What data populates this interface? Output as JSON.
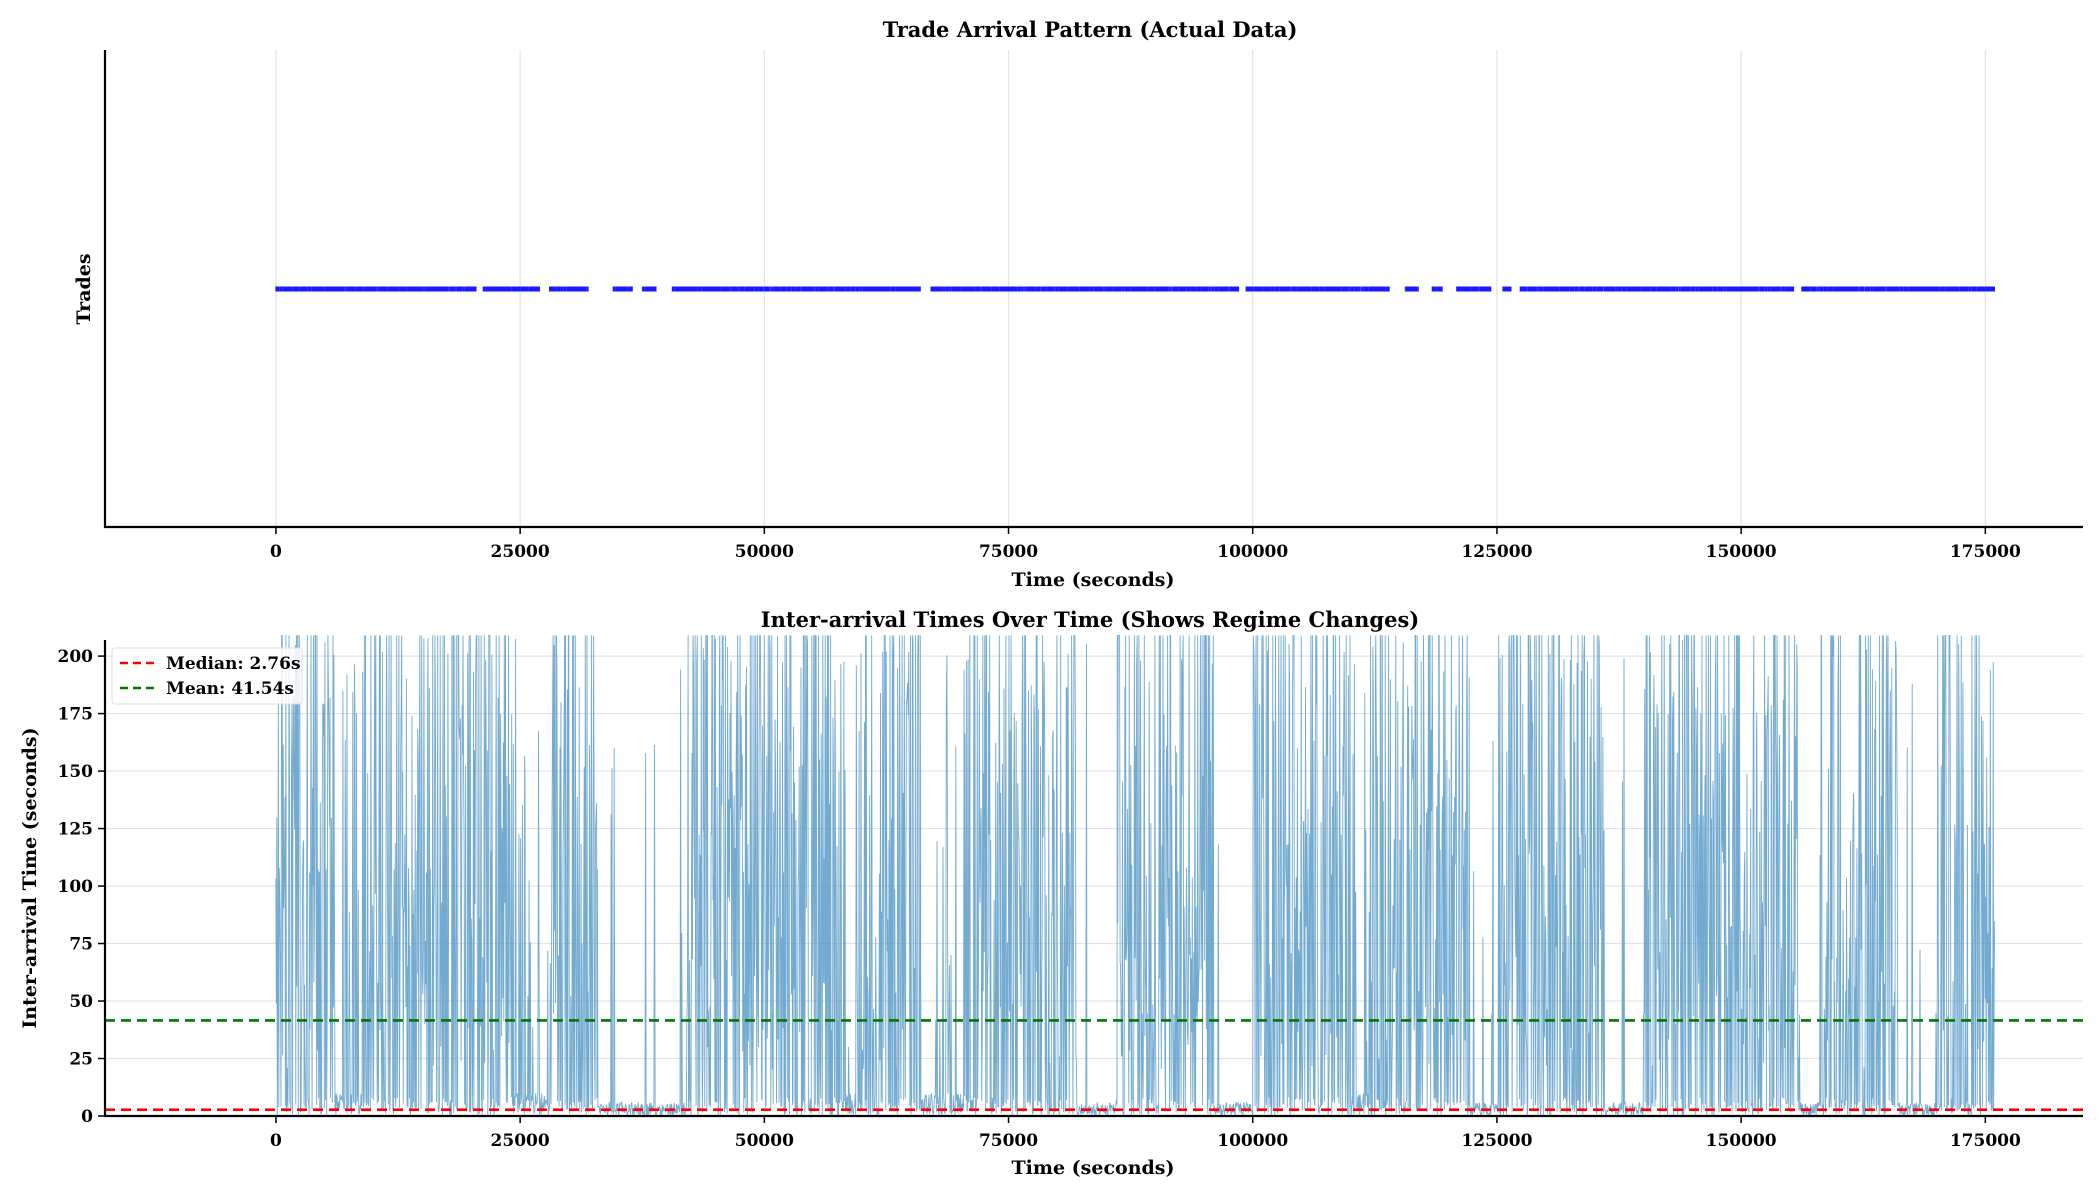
{
  "chart_data": [
    {
      "type": "scatter",
      "title": "Trade Arrival Pattern (Actual Data)",
      "xlabel": "Time (seconds)",
      "ylabel": "Trades",
      "xlim": [
        -17500,
        185000
      ],
      "x_ticks": [
        0,
        25000,
        50000,
        75000,
        100000,
        125000,
        150000,
        175000
      ],
      "y_ticks": [],
      "grid": "vertical",
      "series": [
        {
          "color": "#0000ff",
          "marker": "vertical tick at constant y",
          "x_start": 0,
          "x_end": 176000,
          "gaps": [
            [
              20500,
              21200
            ],
            [
              27000,
              28000
            ],
            [
              32000,
              34500
            ],
            [
              36500,
              37500
            ],
            [
              39000,
              40500
            ],
            [
              66000,
              67000
            ],
            [
              98600,
              99300
            ],
            [
              114000,
              115600
            ],
            [
              117000,
              118300
            ],
            [
              119500,
              120800
            ],
            [
              124400,
              125600
            ],
            [
              126500,
              127300
            ],
            [
              155400,
              156200
            ]
          ]
        }
      ]
    },
    {
      "type": "line",
      "title": "Inter-arrival Times Over Time (Shows Regime Changes)",
      "xlabel": "Time (seconds)",
      "ylabel": "Inter-arrival Time (seconds)",
      "xlim": [
        -17500,
        185000
      ],
      "ylim": [
        0,
        207
      ],
      "x_ticks": [
        0,
        25000,
        50000,
        75000,
        100000,
        125000,
        150000,
        175000
      ],
      "y_ticks": [
        0,
        25,
        50,
        75,
        100,
        125,
        150,
        175,
        200
      ],
      "grid": "horizontal",
      "legend_position": "top-left",
      "series": [
        {
          "color": "#5b9bc8",
          "x_start": 0,
          "x_end": 176000,
          "dense_regions": [
            [
              0,
              6000
            ],
            [
              9000,
              24000
            ],
            [
              28000,
              33000
            ],
            [
              42000,
              58000
            ],
            [
              60000,
              66000
            ],
            [
              71000,
              82000
            ],
            [
              86000,
              96000
            ],
            [
              100000,
              110000
            ],
            [
              112000,
              122000
            ],
            [
              125000,
              136000
            ],
            [
              140000,
              156000
            ],
            [
              158000,
              166000
            ],
            [
              170000,
              176000
            ]
          ],
          "quiet_regions": [
            [
              33000,
              42000
            ],
            [
              82000,
              86000
            ],
            [
              96000,
              100000
            ],
            [
              122000,
              125000
            ],
            [
              136000,
              140000
            ],
            [
              156000,
              158000
            ],
            [
              166000,
              170000
            ]
          ]
        }
      ],
      "reference_lines": [
        {
          "label": "Median: 2.76s",
          "y": 2.76,
          "color": "#ff0000",
          "style": "dashed"
        },
        {
          "label": "Mean: 41.54s",
          "y": 41.54,
          "color": "#007700",
          "style": "dashed"
        }
      ]
    }
  ]
}
